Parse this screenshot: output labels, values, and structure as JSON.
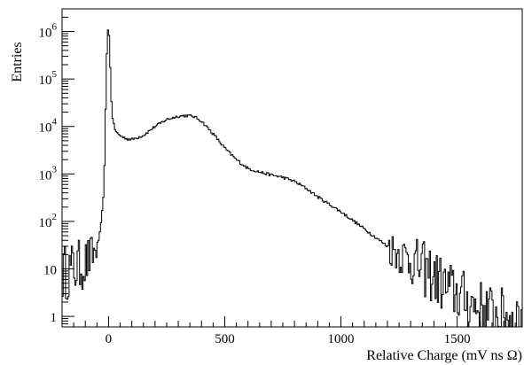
{
  "chart_data": {
    "type": "histogram",
    "title": "",
    "xlabel": "Relative Charge (mV ns Ω)",
    "ylabel": "Entries",
    "x_range": [
      -200,
      1780
    ],
    "y_scale": "log",
    "y_range": [
      0.6,
      3000000
    ],
    "grid": false,
    "legend": "none",
    "x_ticks": [
      0,
      500,
      1000,
      1500
    ],
    "x_tick_labels": [
      "0",
      "500",
      "1000",
      "1500"
    ],
    "y_ticks": [
      1,
      10,
      100,
      1000,
      10000,
      100000,
      1000000
    ],
    "y_tick_labels": [
      {
        "base": "1",
        "exp": ""
      },
      {
        "base": "10",
        "exp": ""
      },
      {
        "base": "10",
        "exp": "2"
      },
      {
        "base": "10",
        "exp": "3"
      },
      {
        "base": "10",
        "exp": "4"
      },
      {
        "base": "10",
        "exp": "5"
      },
      {
        "base": "10",
        "exp": "6"
      }
    ],
    "series": [
      {
        "x": [
          -200,
          -150,
          -100,
          -60,
          -40,
          -30,
          -20,
          -15,
          -10,
          -5,
          0,
          5,
          10,
          15,
          20,
          30,
          40,
          60,
          80,
          100,
          150,
          200,
          250,
          300,
          340,
          370,
          400,
          450,
          500,
          550,
          600,
          650,
          700,
          750,
          800,
          850,
          900,
          1000,
          1100,
          1200,
          1300,
          1400,
          1450,
          1500,
          1550,
          1600,
          1650,
          1700,
          1750
        ],
        "values": [
          8,
          10,
          13,
          22,
          45,
          110,
          500,
          4000,
          120000,
          1000000,
          1300000,
          500000,
          60000,
          20000,
          12000,
          8000,
          7000,
          6000,
          5500,
          5300,
          6500,
          10000,
          14000,
          16500,
          17000,
          16000,
          13000,
          7000,
          3500,
          2000,
          1300,
          1100,
          950,
          850,
          700,
          500,
          330,
          160,
          70,
          30,
          15,
          7,
          4,
          3,
          2,
          1.5,
          1.2,
          1,
          1
        ]
      }
    ]
  }
}
